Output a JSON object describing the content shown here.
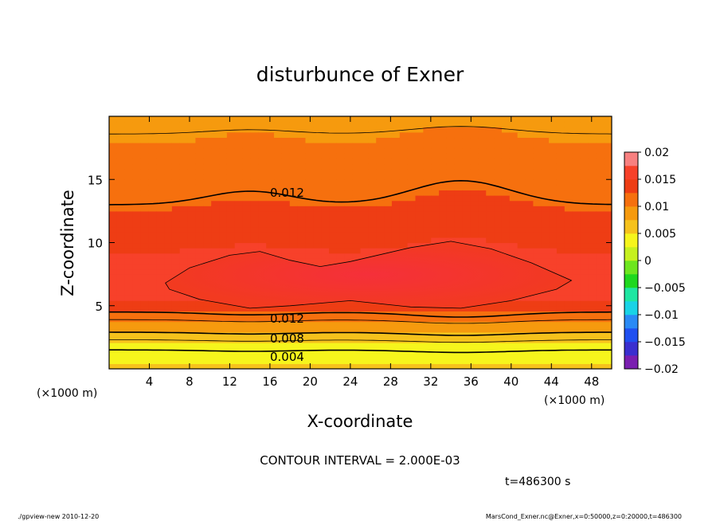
{
  "chart_data": {
    "type": "heatmap",
    "subtype": "filled-contour",
    "title": "disturbunce of Exner",
    "xlabel": "X-coordinate",
    "ylabel": "Z-coordinate",
    "x_unit_left": "(×1000 m)",
    "x_unit_right": "(×1000 m)",
    "xlim": [
      0,
      50
    ],
    "ylim": [
      0,
      20
    ],
    "xticks": [
      4,
      8,
      12,
      16,
      20,
      24,
      28,
      32,
      36,
      40,
      44,
      48
    ],
    "yticks": [
      5,
      10,
      15
    ],
    "contour_interval_text": "CONTOUR INTERVAL = 2.000E-03",
    "time_text": "t=486300 s",
    "colorbar": {
      "min": -0.02,
      "max": 0.02,
      "step": 0.0025,
      "tick_labels": [
        "0.02",
        "0.015",
        "0.01",
        "0.005",
        "0",
        "−0.005",
        "−0.01",
        "−0.015",
        "−0.02"
      ],
      "colors": [
        "#7a1fb0",
        "#3a2fcf",
        "#1f4ff0",
        "#2a8af5",
        "#19d3e6",
        "#1ee6a2",
        "#1fd81f",
        "#6ee61f",
        "#c6f01f",
        "#f6f51c",
        "#f6c21c",
        "#f69a0e",
        "#f6700e",
        "#ee3d14",
        "#f7412a",
        "#f88080"
      ]
    },
    "contour_labels": [
      "0.012",
      "0.012",
      "0.008",
      "0.004"
    ],
    "field_profile": {
      "z": [
        0,
        0.5,
        1.2,
        2.0,
        2.8,
        3.5,
        4.3,
        5.2,
        6.5,
        7.0,
        8.5,
        10.0,
        11.5,
        13.0,
        14.5,
        16.0,
        17.5,
        18.8,
        20.0
      ],
      "value": [
        0.0055,
        0.0045,
        0.0038,
        0.0041,
        0.0072,
        0.0098,
        0.0118,
        0.0148,
        0.0155,
        0.0156,
        0.0154,
        0.0146,
        0.0136,
        0.012,
        0.0112,
        0.0108,
        0.0101,
        0.0096,
        0.0094
      ]
    },
    "grid": false,
    "legend": "colorbar-right"
  },
  "footer": {
    "left": "./gpview-new 2010-12-20",
    "right": "MarsCond_Exner.nc@Exner,x=0:50000,z=0:20000,t=486300"
  }
}
